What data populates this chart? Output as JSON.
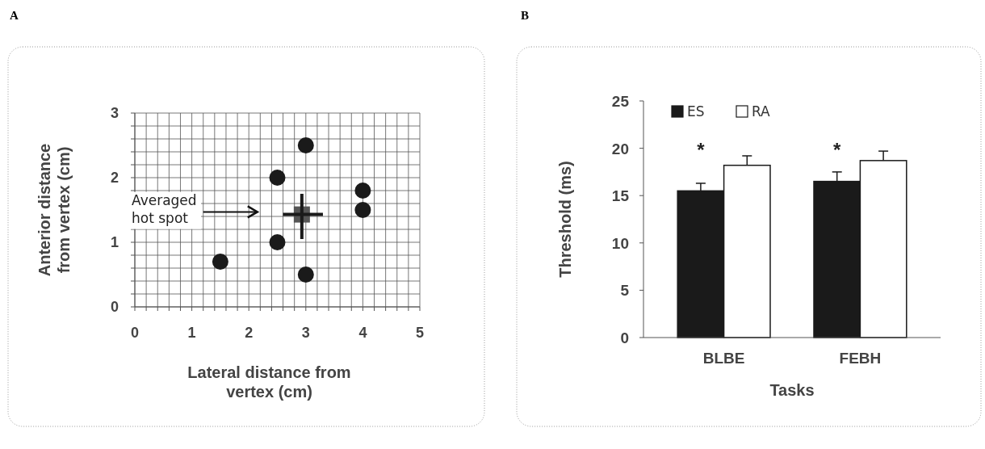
{
  "chart_data": [
    {
      "type": "scatter",
      "xlabel": "Lateral  distance from vertex (cm)",
      "ylabel": "Anterior distance from vertex (cm)",
      "xlim": [
        0,
        5
      ],
      "ylim": [
        0,
        3
      ],
      "xticks": [
        0,
        {
          "value": 0.2,
          "label": null
        },
        {
          "value": 0.4,
          "label": null
        },
        {
          "value": 0.6,
          "label": null
        },
        {
          "value": 0.8,
          "label": null
        },
        1,
        {
          "value": 1.2,
          "label": null
        },
        {
          "value": 1.4,
          "label": null
        },
        {
          "value": 1.6,
          "label": null
        },
        {
          "value": 1.8,
          "label": null
        },
        2,
        {
          "value": 2.2,
          "label": null
        },
        {
          "value": 2.4,
          "label": null
        },
        {
          "value": 2.6,
          "label": null
        },
        {
          "value": 2.8,
          "label": null
        },
        3,
        {
          "value": 3.2,
          "label": null
        },
        {
          "value": 3.4,
          "label": null
        },
        {
          "value": 3.6,
          "label": null
        },
        {
          "value": 3.8,
          "label": null
        },
        4,
        {
          "value": 4.2,
          "label": null
        },
        {
          "value": 4.4,
          "label": null
        },
        {
          "value": 4.6,
          "label": null
        },
        {
          "value": 4.8,
          "label": null
        },
        5
      ],
      "yticks": [
        0,
        {
          "value": 0.2,
          "label": null
        },
        {
          "value": 0.4,
          "label": null
        },
        {
          "value": 0.6,
          "label": null
        },
        {
          "value": 0.8,
          "label": null
        },
        1,
        {
          "value": 1.2,
          "label": null
        },
        {
          "value": 1.4,
          "label": null
        },
        {
          "value": 1.6,
          "label": null
        },
        {
          "value": 1.8,
          "label": null
        },
        2,
        {
          "value": 2.2,
          "label": null
        },
        {
          "value": 2.4,
          "label": null
        },
        {
          "value": 2.6,
          "label": null
        },
        {
          "value": 2.8,
          "label": null
        },
        3
      ],
      "grid": true,
      "marker": "circle",
      "annotations": [
        "A",
        "Averaged hot spot"
      ],
      "series": [
        {
          "x": [
            1.5,
            2.5,
            2.5,
            3,
            3,
            4,
            4
          ],
          "values": [
            0.7,
            2.0,
            1.0,
            2.5,
            0.5,
            1.8,
            1.5
          ],
          "color": "#1a1a1a"
        },
        {
          "x": [
            2.93
          ],
          "values": [
            1.43
          ],
          "color": "#555555",
          "marker": "square",
          "errors": [
            [
              1.05,
              1.75
            ]
          ],
          "xerrors": [
            [
              2.6,
              3.3
            ]
          ]
        }
      ]
    },
    {
      "type": "bar",
      "xlabel": "Tasks",
      "ylabel": "Threshold (ms)",
      "categories": [
        "BLBE",
        "FEBH"
      ],
      "ylim": [
        0,
        25
      ],
      "yticks": [
        0,
        5,
        10,
        15,
        20,
        25
      ],
      "legend": "top left",
      "annotations": [
        "B",
        "*",
        "*"
      ],
      "series": [
        {
          "name": "ES",
          "color": "#1a1a1a",
          "values": [
            15.5,
            16.5
          ],
          "errors": [
            [
              15.5,
              16.3
            ],
            [
              16.5,
              17.5
            ]
          ]
        },
        {
          "name": "RA",
          "color": "#ffffff",
          "values": [
            18.2,
            18.7
          ],
          "errors": [
            [
              18.2,
              19.2
            ],
            [
              18.7,
              19.7
            ]
          ]
        }
      ]
    }
  ]
}
